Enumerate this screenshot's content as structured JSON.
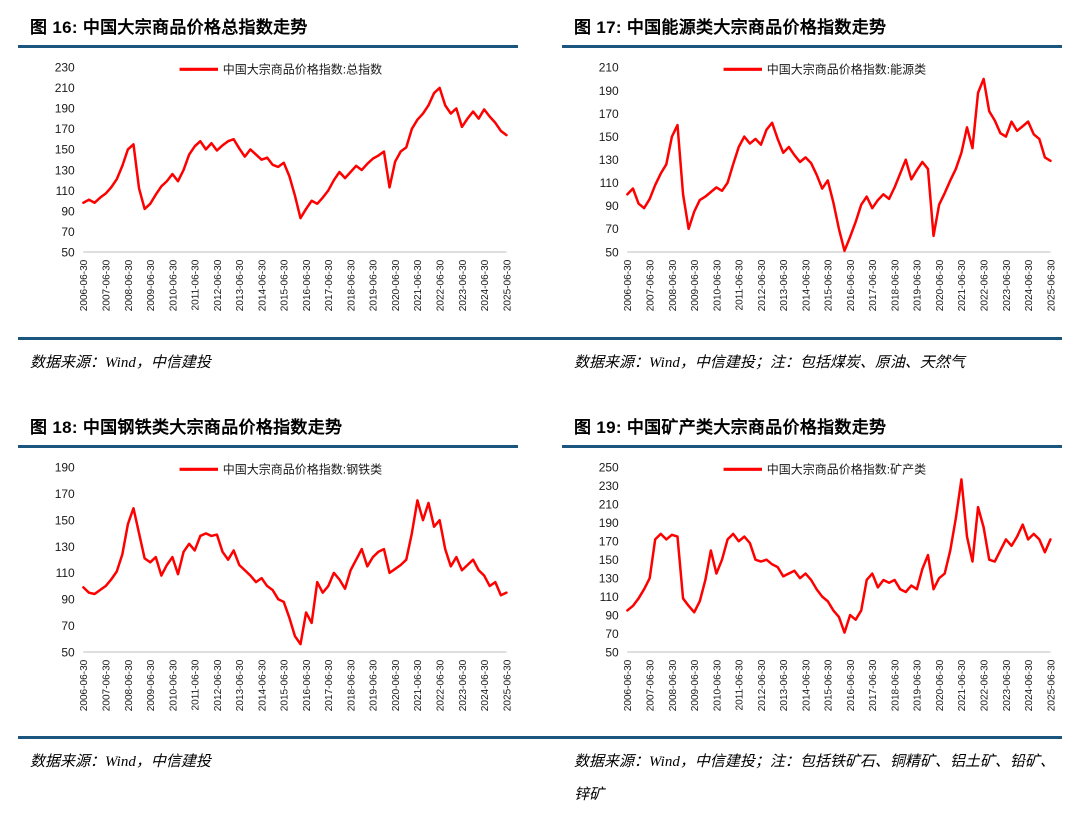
{
  "page": {
    "background": "#FFFFFF",
    "accent_color": "#1B567F",
    "series_color": "#FF0000"
  },
  "figures": [
    {
      "title": "图 16: 中国大宗商品价格总指数走势",
      "source": "数据来源：Wind，中信建投"
    },
    {
      "title": "图 17: 中国能源类大宗商品价格指数走势",
      "source": "数据来源：Wind，中信建投；注：包括煤炭、原油、天然气"
    },
    {
      "title": "图 18: 中国钢铁类大宗商品价格指数走势",
      "source": "数据来源：Wind，中信建投"
    },
    {
      "title": "图 19: 中国矿产类大宗商品价格指数走势",
      "source": "数据来源：Wind，中信建投；注：包括铁矿石、铜精矿、铝土矿、铅矿、锌矿"
    }
  ],
  "chart_data": [
    {
      "type": "line",
      "title": "图 16: 中国大宗商品价格总指数走势",
      "legend": "中国大宗商品价格指数:总指数",
      "series_color": "#FF0000",
      "grid": false,
      "legend_position": "top-center",
      "ylim": [
        50,
        230
      ],
      "y_ticks": [
        50,
        70,
        90,
        110,
        130,
        150,
        170,
        190,
        210,
        230
      ],
      "x_tick_labels": [
        "2006-06-30",
        "2007-06-30",
        "2008-06-30",
        "2009-06-30",
        "2010-06-30",
        "2011-06-30",
        "2012-06-30",
        "2013-06-30",
        "2014-06-30",
        "2015-06-30",
        "2016-06-30",
        "2017-06-30",
        "2018-06-30",
        "2019-06-30",
        "2020-06-30",
        "2021-06-30",
        "2022-06-30",
        "2023-06-30",
        "2024-06-30",
        "2025-06-30"
      ],
      "x_start": 2006.5,
      "x_step": 0.25,
      "x_unit": "year",
      "values": [
        98,
        101,
        98,
        103,
        107,
        113,
        121,
        134,
        150,
        155,
        112,
        92,
        97,
        106,
        114,
        119,
        126,
        119,
        130,
        145,
        153,
        158,
        150,
        156,
        149,
        154,
        158,
        160,
        151,
        143,
        150,
        145,
        140,
        142,
        135,
        133,
        137,
        124,
        105,
        83,
        92,
        100,
        97,
        103,
        110,
        120,
        128,
        122,
        128,
        134,
        130,
        136,
        141,
        144,
        148,
        113,
        138,
        148,
        152,
        170,
        179,
        185,
        193,
        205,
        210,
        193,
        185,
        190,
        172,
        180,
        187,
        180,
        189,
        182,
        176,
        168,
        164
      ]
    },
    {
      "type": "line",
      "title": "图 17: 中国能源类大宗商品价格指数走势",
      "legend": "中国大宗商品价格指数:能源类",
      "series_color": "#FF0000",
      "grid": false,
      "legend_position": "top-center",
      "ylim": [
        50,
        210
      ],
      "y_ticks": [
        50,
        70,
        90,
        110,
        130,
        150,
        170,
        190,
        210
      ],
      "x_tick_labels": [
        "2006-06-30",
        "2007-06-30",
        "2008-06-30",
        "2009-06-30",
        "2010-06-30",
        "2011-06-30",
        "2012-06-30",
        "2013-06-30",
        "2014-06-30",
        "2015-06-30",
        "2016-06-30",
        "2017-06-30",
        "2018-06-30",
        "2019-06-30",
        "2020-06-30",
        "2021-06-30",
        "2022-06-30",
        "2023-06-30",
        "2024-06-30",
        "2025-06-30"
      ],
      "x_start": 2006.5,
      "x_step": 0.25,
      "x_unit": "year",
      "values": [
        100,
        105,
        92,
        88,
        96,
        108,
        118,
        126,
        150,
        160,
        100,
        70,
        85,
        95,
        98,
        102,
        106,
        103,
        110,
        126,
        141,
        150,
        144,
        148,
        143,
        156,
        162,
        148,
        136,
        141,
        134,
        128,
        132,
        127,
        117,
        105,
        112,
        93,
        70,
        51,
        63,
        76,
        91,
        98,
        88,
        95,
        100,
        96,
        106,
        118,
        130,
        113,
        121,
        128,
        122,
        64,
        91,
        101,
        112,
        122,
        136,
        158,
        140,
        188,
        200,
        172,
        164,
        153,
        150,
        163,
        155,
        159,
        163,
        152,
        148,
        132,
        129
      ]
    },
    {
      "type": "line",
      "title": "图 18: 中国钢铁类大宗商品价格指数走势",
      "legend": "中国大宗商品价格指数:钢铁类",
      "series_color": "#FF0000",
      "grid": false,
      "legend_position": "top-center",
      "ylim": [
        50,
        190
      ],
      "y_ticks": [
        50,
        70,
        90,
        110,
        130,
        150,
        170,
        190
      ],
      "x_tick_labels": [
        "2006-06-30",
        "2007-06-30",
        "2008-06-30",
        "2009-06-30",
        "2010-06-30",
        "2011-06-30",
        "2012-06-30",
        "2013-06-30",
        "2014-06-30",
        "2015-06-30",
        "2016-06-30",
        "2017-06-30",
        "2018-06-30",
        "2019-06-30",
        "2020-06-30",
        "2021-06-30",
        "2022-06-30",
        "2023-06-30",
        "2024-06-30",
        "2025-06-30"
      ],
      "x_start": 2006.5,
      "x_step": 0.25,
      "x_unit": "year",
      "values": [
        99,
        95,
        94,
        97,
        100,
        105,
        111,
        124,
        147,
        159,
        140,
        121,
        118,
        122,
        108,
        116,
        122,
        109,
        126,
        132,
        127,
        138,
        140,
        138,
        139,
        126,
        120,
        127,
        116,
        112,
        108,
        103,
        106,
        100,
        97,
        90,
        88,
        76,
        62,
        56,
        80,
        72,
        103,
        95,
        100,
        110,
        105,
        98,
        112,
        120,
        128,
        115,
        122,
        126,
        128,
        110,
        113,
        116,
        120,
        140,
        165,
        150,
        163,
        145,
        150,
        128,
        115,
        122,
        112,
        116,
        120,
        112,
        108,
        100,
        103,
        93,
        95
      ]
    },
    {
      "type": "line",
      "title": "图 19: 中国矿产类大宗商品价格指数走势",
      "legend": "中国大宗商品价格指数:矿产类",
      "series_color": "#FF0000",
      "grid": false,
      "legend_position": "top-center",
      "ylim": [
        50,
        250
      ],
      "y_ticks": [
        50,
        70,
        90,
        110,
        130,
        150,
        170,
        190,
        210,
        230,
        250
      ],
      "x_tick_labels": [
        "2006-06-30",
        "2007-06-30",
        "2008-06-30",
        "2009-06-30",
        "2010-06-30",
        "2011-06-30",
        "2012-06-30",
        "2013-06-30",
        "2014-06-30",
        "2015-06-30",
        "2016-06-30",
        "2017-06-30",
        "2018-06-30",
        "2019-06-30",
        "2020-06-30",
        "2021-06-30",
        "2022-06-30",
        "2023-06-30",
        "2024-06-30",
        "2025-06-30"
      ],
      "x_start": 2006.5,
      "x_step": 0.25,
      "x_unit": "year",
      "values": [
        95,
        100,
        108,
        118,
        130,
        172,
        178,
        172,
        177,
        175,
        108,
        100,
        93,
        105,
        128,
        160,
        135,
        150,
        172,
        178,
        170,
        175,
        168,
        150,
        148,
        150,
        145,
        142,
        132,
        135,
        138,
        130,
        135,
        128,
        118,
        110,
        105,
        95,
        88,
        71,
        90,
        85,
        95,
        128,
        135,
        120,
        128,
        125,
        128,
        118,
        115,
        122,
        118,
        140,
        155,
        118,
        130,
        135,
        160,
        195,
        237,
        175,
        148,
        207,
        185,
        150,
        148,
        160,
        172,
        165,
        175,
        188,
        172,
        178,
        172,
        158,
        172
      ]
    }
  ]
}
